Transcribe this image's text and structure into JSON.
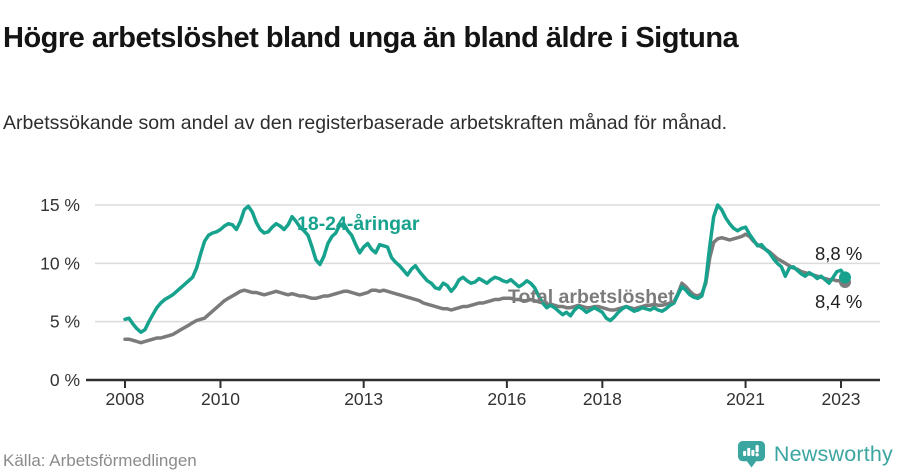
{
  "header": {
    "title": "Högre arbetslöshet bland unga än bland äldre i Sigtuna",
    "subtitle": "Arbetssökande som andel av den registerbaserade arbetskraften månad för månad."
  },
  "annotations": {
    "young_label": "18-24-åringar",
    "total_label": "Total arbetslöshet",
    "end_label_young": "8,8 %",
    "end_label_total": "8,4 %"
  },
  "footer": {
    "source": "Källa: Arbetsförmedlingen",
    "brand": "Newsworthy"
  },
  "colors": {
    "young": "#17A28E",
    "total": "#7B7B7B",
    "grid": "#DCDCDC",
    "axis": "#2E2E2E",
    "axis_text": "#333333",
    "brand_teal": "#3BA5A0"
  },
  "chart_data": {
    "type": "line",
    "title": "Högre arbetslöshet bland unga än bland äldre i Sigtuna",
    "subtitle": "Arbetssökande som andel av den registerbaserade arbetskraften månad för månad.",
    "x_start": "2008-01",
    "x_end": "2023-02",
    "x_unit": "month",
    "ylim": [
      0,
      15.5
    ],
    "grid": "horizontal",
    "legend_position": "inline-labels",
    "y_ticks": [
      {
        "label": "0 %",
        "v": 0
      },
      {
        "label": "5 %",
        "v": 5
      },
      {
        "label": "10 %",
        "v": 10
      },
      {
        "label": "15 %",
        "v": 15
      }
    ],
    "x_ticks": [
      {
        "label": "2008",
        "m": 0
      },
      {
        "label": "2010",
        "m": 24
      },
      {
        "label": "2013",
        "m": 60
      },
      {
        "label": "2016",
        "m": 96
      },
      {
        "label": "2018",
        "m": 120
      },
      {
        "label": "2021",
        "m": 156
      },
      {
        "label": "2023",
        "m": 180
      }
    ],
    "series": [
      {
        "name": "Total arbetslöshet",
        "color": "#7B7B7B",
        "end_value_label": "8,4 %",
        "values": [
          3.5,
          3.5,
          3.4,
          3.3,
          3.2,
          3.3,
          3.4,
          3.5,
          3.6,
          3.6,
          3.7,
          3.8,
          3.9,
          4.1,
          4.3,
          4.5,
          4.7,
          4.9,
          5.1,
          5.2,
          5.3,
          5.6,
          5.9,
          6.2,
          6.5,
          6.8,
          7.0,
          7.2,
          7.4,
          7.6,
          7.7,
          7.6,
          7.5,
          7.5,
          7.4,
          7.3,
          7.4,
          7.5,
          7.6,
          7.5,
          7.4,
          7.3,
          7.4,
          7.3,
          7.2,
          7.2,
          7.1,
          7.0,
          7.0,
          7.1,
          7.2,
          7.2,
          7.3,
          7.4,
          7.5,
          7.6,
          7.6,
          7.5,
          7.4,
          7.3,
          7.4,
          7.5,
          7.7,
          7.7,
          7.6,
          7.7,
          7.6,
          7.5,
          7.4,
          7.3,
          7.2,
          7.1,
          7.0,
          6.9,
          6.8,
          6.6,
          6.5,
          6.4,
          6.3,
          6.2,
          6.1,
          6.1,
          6.0,
          6.1,
          6.2,
          6.3,
          6.3,
          6.4,
          6.5,
          6.6,
          6.6,
          6.7,
          6.8,
          6.9,
          6.9,
          7.0,
          7.0,
          7.0,
          6.9,
          6.9,
          6.8,
          6.8,
          6.9,
          6.8,
          6.7,
          6.6,
          6.5,
          6.5,
          6.4,
          6.3,
          6.3,
          6.2,
          6.2,
          6.3,
          6.4,
          6.3,
          6.2,
          6.2,
          6.3,
          6.3,
          6.2,
          6.1,
          6.0,
          6.0,
          6.1,
          6.2,
          6.3,
          6.2,
          6.1,
          6.2,
          6.3,
          6.4,
          6.4,
          6.5,
          6.4,
          6.4,
          6.5,
          6.6,
          6.7,
          7.4,
          8.3,
          8.0,
          7.6,
          7.3,
          7.2,
          7.4,
          8.3,
          10.5,
          11.8,
          12.1,
          12.2,
          12.1,
          12.0,
          12.1,
          12.2,
          12.3,
          12.5,
          12.3,
          11.9,
          11.6,
          11.4,
          11.2,
          11.0,
          10.7,
          10.4,
          10.2,
          10.0,
          9.8,
          9.6,
          9.5,
          9.3,
          9.2,
          9.1,
          9.0,
          8.9,
          8.8,
          8.7,
          8.6,
          8.6,
          8.5,
          8.5,
          8.4
        ]
      },
      {
        "name": "18-24-åringar",
        "color": "#17A28E",
        "end_value_label": "8,8 %",
        "values": [
          5.2,
          5.3,
          4.8,
          4.4,
          4.1,
          4.3,
          5.0,
          5.6,
          6.2,
          6.6,
          6.9,
          7.1,
          7.3,
          7.6,
          7.9,
          8.2,
          8.5,
          8.8,
          9.6,
          10.8,
          11.9,
          12.4,
          12.6,
          12.7,
          12.9,
          13.2,
          13.4,
          13.3,
          12.9,
          13.6,
          14.6,
          14.9,
          14.4,
          13.5,
          12.9,
          12.6,
          12.7,
          13.1,
          13.4,
          13.2,
          12.9,
          13.3,
          14.0,
          13.6,
          13.1,
          12.8,
          12.4,
          11.4,
          10.3,
          9.9,
          10.6,
          11.7,
          12.3,
          12.6,
          13.3,
          13.4,
          12.8,
          12.4,
          11.6,
          10.9,
          11.4,
          11.7,
          11.2,
          10.9,
          11.6,
          11.5,
          11.4,
          10.5,
          10.1,
          9.8,
          9.4,
          9.0,
          9.5,
          9.8,
          9.3,
          8.9,
          8.5,
          8.3,
          7.9,
          7.8,
          8.3,
          8.1,
          7.6,
          8.0,
          8.6,
          8.8,
          8.5,
          8.3,
          8.4,
          8.7,
          8.5,
          8.3,
          8.6,
          8.8,
          8.7,
          8.5,
          8.4,
          8.6,
          8.3,
          8.0,
          8.2,
          8.5,
          8.3,
          7.9,
          7.2,
          6.6,
          6.2,
          6.4,
          6.2,
          5.9,
          5.6,
          5.8,
          5.5,
          6.0,
          6.3,
          6.1,
          5.8,
          6.0,
          6.2,
          6.0,
          5.8,
          5.3,
          5.1,
          5.4,
          5.8,
          6.1,
          6.3,
          6.1,
          5.9,
          6.0,
          6.2,
          6.1,
          6.0,
          6.2,
          6.0,
          5.9,
          6.1,
          6.4,
          6.6,
          7.3,
          8.0,
          7.7,
          7.3,
          7.1,
          7.0,
          7.2,
          8.5,
          11.5,
          14.0,
          15.0,
          14.6,
          13.9,
          13.4,
          13.0,
          12.8,
          13.0,
          13.1,
          12.5,
          12.0,
          11.5,
          11.6,
          11.2,
          10.9,
          10.4,
          10.0,
          9.7,
          8.9,
          9.6,
          9.7,
          9.4,
          9.1,
          8.9,
          9.2,
          9.0,
          8.7,
          8.9,
          8.6,
          8.3,
          8.8,
          9.3,
          9.4,
          8.8
        ]
      }
    ]
  }
}
